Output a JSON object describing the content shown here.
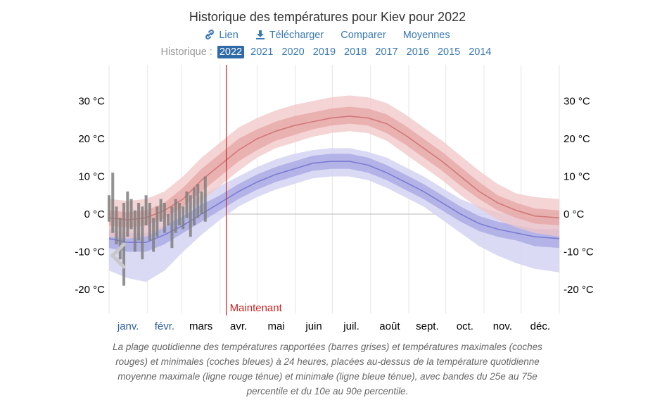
{
  "header": {
    "title": "Historique des températures pour Kiev pour 2022",
    "links": [
      {
        "label": "Lien",
        "icon": "link-icon"
      },
      {
        "label": "Télécharger",
        "icon": "download-icon"
      },
      {
        "label": "Comparer",
        "icon": ""
      },
      {
        "label": "Moyennes",
        "icon": ""
      }
    ],
    "history_label": "Historique :",
    "years": [
      "2022",
      "2021",
      "2020",
      "2019",
      "2018",
      "2017",
      "2016",
      "2015",
      "2014"
    ],
    "selected_year": "2022"
  },
  "colors": {
    "max_band_outer": "#f0c6c6",
    "max_band_inner": "#e59e9e",
    "max_line": "#d07878",
    "min_band_outer": "#d4d4f2",
    "min_band_inner": "#a9a9e4",
    "min_line": "#7c7cd4",
    "observed_bars": "#7f7f7f",
    "now_line": "#cc2222",
    "grid": "#e6e6e6",
    "zero_line": "#b8b8b8"
  },
  "chart_data": {
    "type": "area",
    "title": "Historique des températures pour Kiev pour 2022",
    "y_unit": "°C",
    "ylim": [
      -25,
      37
    ],
    "yticks": [
      -20,
      -10,
      0,
      10,
      20,
      30
    ],
    "ytick_labels": [
      "-20 °C",
      "-10 °C",
      "0 °C",
      "10 °C",
      "20 °C",
      "30 °C"
    ],
    "day_range": [
      0,
      365
    ],
    "months": [
      {
        "label": "janv.",
        "day": 0,
        "past": true
      },
      {
        "label": "févr.",
        "day": 31,
        "past": true
      },
      {
        "label": "mars",
        "day": 59,
        "past": false
      },
      {
        "label": "avr.",
        "day": 90,
        "past": false
      },
      {
        "label": "mai",
        "day": 120,
        "past": false
      },
      {
        "label": "juin",
        "day": 151,
        "past": false
      },
      {
        "label": "juil.",
        "day": 181,
        "past": false
      },
      {
        "label": "août",
        "day": 212,
        "past": false
      },
      {
        "label": "sept.",
        "day": 243,
        "past": false
      },
      {
        "label": "oct.",
        "day": 273,
        "past": false
      },
      {
        "label": "nov.",
        "day": 304,
        "past": false
      },
      {
        "label": "déc.",
        "day": 334,
        "past": false
      }
    ],
    "now": {
      "day": 95,
      "label": "Maintenant"
    },
    "normal_high": {
      "days": [
        0,
        15,
        30,
        45,
        60,
        75,
        90,
        105,
        120,
        135,
        150,
        165,
        180,
        195,
        210,
        225,
        240,
        255,
        270,
        285,
        300,
        315,
        330,
        345,
        365
      ],
      "mean": [
        -1,
        -1.5,
        -1,
        1,
        4,
        9,
        13,
        17,
        20,
        22,
        23.5,
        24.5,
        25.5,
        26,
        25.5,
        24,
        21,
        17.5,
        14,
        10,
        6,
        3,
        1,
        -0.5,
        -1
      ],
      "p25": [
        -3,
        -3.5,
        -3,
        -1,
        2,
        6,
        10,
        14,
        17,
        19.5,
        21,
        22.5,
        23.5,
        24,
        23.5,
        21.5,
        18.5,
        15,
        11.5,
        7.5,
        4,
        1,
        -1,
        -2.5,
        -3
      ],
      "p75": [
        1,
        0.5,
        1,
        3,
        7,
        12,
        16,
        20,
        22.5,
        24.5,
        26,
        27,
        28,
        28.5,
        28,
        26.5,
        23.5,
        20,
        16.5,
        12.5,
        8.5,
        5,
        3,
        1.5,
        1
      ],
      "p10": [
        -6,
        -6.5,
        -6,
        -3.5,
        0,
        3.5,
        7.5,
        11.5,
        15,
        17.5,
        19,
        20.5,
        21.5,
        22,
        21.5,
        19.5,
        16,
        12.5,
        9,
        5,
        1.5,
        -1.5,
        -3.5,
        -5,
        -6
      ],
      "p90": [
        4,
        3.5,
        4,
        6,
        10,
        15,
        19,
        23,
        25.5,
        27.5,
        29,
        30,
        31,
        31.5,
        31,
        29.5,
        26.5,
        23,
        19.5,
        15.5,
        11.5,
        8,
        5.5,
        4.5,
        4
      ]
    },
    "normal_low": {
      "days": [
        0,
        15,
        30,
        45,
        60,
        75,
        90,
        105,
        120,
        135,
        150,
        165,
        180,
        195,
        210,
        225,
        240,
        255,
        270,
        285,
        300,
        315,
        330,
        345,
        365
      ],
      "mean": [
        -6.5,
        -7.5,
        -7.5,
        -5.5,
        -3,
        0,
        3,
        6,
        8.5,
        10.5,
        12,
        13.5,
        14,
        14,
        13,
        11,
        8.5,
        6,
        3,
        0,
        -2.5,
        -4,
        -5,
        -6,
        -6.5
      ],
      "p25": [
        -9,
        -10,
        -10,
        -8,
        -5,
        -2,
        1,
        4,
        6.5,
        8.5,
        10,
        11.5,
        12,
        12,
        11,
        9,
        6.5,
        4,
        1,
        -2,
        -4.5,
        -6,
        -7,
        -8.5,
        -9
      ],
      "p75": [
        -4,
        -5,
        -5,
        -3,
        -0.5,
        2.5,
        5,
        8,
        10.5,
        12.5,
        14,
        15.5,
        16,
        16,
        15,
        13,
        10.5,
        8,
        5,
        2,
        -0.5,
        -2,
        -3,
        -4,
        -4
      ],
      "p10": [
        -15,
        -17,
        -18,
        -15,
        -10,
        -5.5,
        -1.5,
        2,
        4.5,
        6.5,
        8,
        9.5,
        10,
        10,
        9,
        7,
        4.5,
        2,
        -1.5,
        -5,
        -8.5,
        -11,
        -13,
        -14.5,
        -15.5
      ],
      "p90": [
        -1,
        -2,
        -1.5,
        0,
        2.5,
        5,
        7.5,
        10,
        12.5,
        14.5,
        16,
        17,
        17.5,
        17.5,
        16.5,
        15,
        12.5,
        10,
        7,
        4,
        2,
        0.5,
        -0.5,
        -1,
        -1
      ]
    },
    "observed": {
      "days": [
        0,
        3,
        6,
        9,
        12,
        15,
        18,
        21,
        24,
        27,
        30,
        33,
        36,
        39,
        42,
        45,
        48,
        51,
        54,
        57,
        60,
        63,
        66,
        69,
        72,
        75,
        78
      ],
      "low": [
        -2,
        -5,
        -8,
        -12,
        -19,
        -6,
        -4,
        -10,
        -7,
        -12,
        -3,
        -7,
        -10,
        -6,
        -2,
        -5,
        -3,
        -9,
        -5,
        -3,
        -4,
        -1,
        -6,
        -3,
        -1,
        0,
        -2
      ],
      "high": [
        5,
        11,
        2,
        -1,
        3,
        6,
        4,
        1,
        3,
        2,
        5,
        3,
        -1,
        2,
        4,
        3,
        0,
        2,
        4,
        3,
        2,
        6,
        5,
        7,
        8,
        6,
        10
      ]
    }
  },
  "caption": "La plage quotidienne des températures rapportées (barres grises) et températures maximales (coches rouges) et minimales (coches bleues) à 24 heures, placées au-dessus de la température quotidienne moyenne maximale (ligne rouge ténue) et minimale (ligne bleue ténue), avec bandes du 25e au 75e percentile et du 10e au 90e percentile."
}
